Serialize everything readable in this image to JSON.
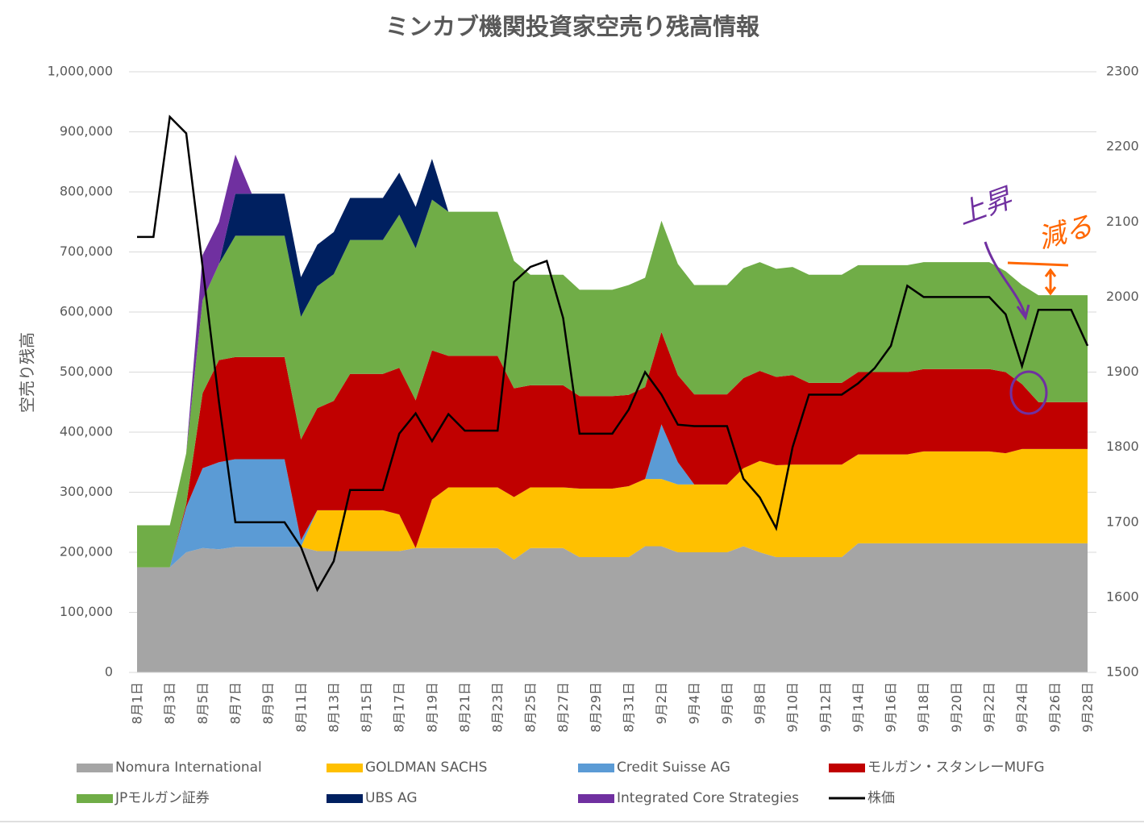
{
  "chart_data": {
    "type": "stacked-area",
    "title": "ミンカブ機関投資家空売り残高情報",
    "y_label": "空売り残高",
    "categories": [
      "8月1日",
      null,
      "8月3日",
      null,
      "8月5日",
      null,
      "8月7日",
      null,
      "8月9日",
      null,
      "8月11日",
      null,
      "8月13日",
      null,
      "8月15日",
      null,
      "8月17日",
      null,
      "8月19日",
      null,
      "8月21日",
      null,
      "8月23日",
      null,
      "8月25日",
      null,
      "8月27日",
      null,
      "8月29日",
      null,
      "8月31日",
      null,
      "9月2日",
      null,
      "9月4日",
      null,
      "9月6日",
      null,
      "9月8日",
      null,
      "9月10日",
      null,
      "9月12日",
      null,
      "9月14日",
      null,
      "9月16日",
      null,
      "9月18日",
      null,
      "9月20日",
      null,
      "9月22日",
      null,
      "9月24日",
      null,
      "9月26日",
      null,
      "9月28日"
    ],
    "ylim": [
      0,
      1000000
    ],
    "yticks": [
      0,
      {
        "value": 100000,
        "label": "100,000"
      },
      {
        "value": 200000,
        "label": "200,000"
      },
      {
        "value": 300000,
        "label": "300,000"
      },
      {
        "value": 400000,
        "label": "400,000"
      },
      {
        "value": 500000,
        "label": "500,000"
      },
      {
        "value": 600000,
        "label": "600,000"
      },
      {
        "value": 700000,
        "label": "700,000"
      },
      {
        "value": 800000,
        "label": "800,000"
      },
      {
        "value": 900000,
        "label": "900,000"
      },
      {
        "value": 1000000,
        "label": "1,000,000"
      }
    ],
    "y2lim": [
      1500,
      2300
    ],
    "y2ticks": [
      1500,
      1600,
      1700,
      1800,
      1900,
      2000,
      2100,
      2200,
      2300
    ],
    "grid": true,
    "legend": "bottom",
    "series": [
      {
        "name": "Nomura International",
        "color": "#a5a5a5",
        "values": [
          175000,
          175000,
          175000,
          200000,
          207000,
          205000,
          209000,
          209000,
          209000,
          209000,
          209000,
          202000,
          202000,
          202000,
          202000,
          202000,
          202000,
          207000,
          207000,
          207000,
          207000,
          207000,
          207000,
          188000,
          207000,
          207000,
          207000,
          192000,
          192000,
          192000,
          192000,
          210000,
          210000,
          200000,
          200000,
          200000,
          200000,
          210000,
          200000,
          192000,
          192000,
          192000,
          192000,
          192000,
          215000,
          215000,
          215000,
          215000,
          215000,
          215000,
          215000,
          215000,
          215000,
          215000,
          215000,
          215000,
          215000,
          215000,
          215000
        ]
      },
      {
        "name": "GOLDMAN SACHS",
        "color": "#ffc000",
        "values": [
          0,
          0,
          0,
          0,
          0,
          0,
          0,
          0,
          0,
          0,
          0,
          68000,
          68000,
          68000,
          68000,
          68000,
          61000,
          0,
          81000,
          101000,
          101000,
          101000,
          101000,
          104000,
          101000,
          101000,
          101000,
          114000,
          114000,
          114000,
          118000,
          112000,
          112000,
          113000,
          113000,
          113000,
          113000,
          130000,
          152000,
          153000,
          154000,
          154000,
          154000,
          154000,
          148000,
          148000,
          148000,
          148000,
          153000,
          153000,
          153000,
          153000,
          153000,
          150000,
          157000,
          157000,
          157000,
          157000,
          157000
        ]
      },
      {
        "name": "Credit Suisse AG",
        "color": "#5b9bd5",
        "values": [
          0,
          0,
          0,
          75000,
          133000,
          145000,
          146000,
          146000,
          146000,
          146000,
          11000,
          0,
          0,
          0,
          0,
          0,
          0,
          0,
          0,
          0,
          0,
          0,
          0,
          0,
          0,
          0,
          0,
          0,
          0,
          0,
          0,
          0,
          91000,
          37000,
          0,
          0,
          0,
          0,
          0,
          0,
          0,
          0,
          0,
          0,
          0,
          0,
          0,
          0,
          0,
          0,
          0,
          0,
          0,
          0,
          0,
          0,
          0,
          0,
          0
        ]
      },
      {
        "name": "モルガン・スタンレーMUFG",
        "color": "#c00000",
        "values": [
          0,
          0,
          0,
          5000,
          125000,
          170000,
          170000,
          170000,
          170000,
          170000,
          168000,
          170000,
          182000,
          227000,
          227000,
          227000,
          244000,
          246000,
          248000,
          219000,
          219000,
          219000,
          219000,
          181000,
          170000,
          170000,
          170000,
          154000,
          154000,
          154000,
          152000,
          153000,
          154000,
          145000,
          150000,
          150000,
          150000,
          150000,
          150000,
          147000,
          149000,
          136000,
          136000,
          136000,
          137000,
          137000,
          137000,
          137000,
          137000,
          137000,
          137000,
          137000,
          137000,
          135000,
          108000,
          78000,
          78000,
          78000,
          78000
        ]
      },
      {
        "name": "JPモルガン証券",
        "color": "#70ad47",
        "values": [
          70000,
          70000,
          70000,
          85000,
          155000,
          160000,
          202000,
          202000,
          202000,
          202000,
          204000,
          203000,
          211000,
          223000,
          223000,
          223000,
          255000,
          253000,
          251000,
          240000,
          240000,
          240000,
          240000,
          212000,
          184000,
          184000,
          184000,
          177000,
          177000,
          177000,
          183000,
          182000,
          185000,
          185000,
          182000,
          182000,
          182000,
          183000,
          181000,
          180000,
          180000,
          180000,
          180000,
          180000,
          178000,
          178000,
          178000,
          178000,
          178000,
          178000,
          178000,
          178000,
          178000,
          168000,
          165000,
          178000,
          178000,
          178000,
          178000
        ]
      },
      {
        "name": "UBS AG",
        "color": "#002060",
        "values": [
          0,
          0,
          0,
          0,
          0,
          0,
          70000,
          70000,
          70000,
          70000,
          66000,
          69000,
          70000,
          70000,
          70000,
          70000,
          70000,
          69000,
          68000,
          0,
          0,
          0,
          0,
          0,
          0,
          0,
          0,
          0,
          0,
          0,
          0,
          0,
          0,
          0,
          0,
          0,
          0,
          0,
          0,
          0,
          0,
          0,
          0,
          0,
          0,
          0,
          0,
          0,
          0,
          0,
          0,
          0,
          0,
          0,
          0,
          0,
          0,
          0,
          0
        ]
      },
      {
        "name": "Integrated Core Strategies",
        "color": "#7030a0",
        "values": [
          0,
          0,
          0,
          0,
          75000,
          70000,
          65000,
          0,
          0,
          0,
          0,
          0,
          0,
          0,
          0,
          0,
          0,
          0,
          0,
          0,
          0,
          0,
          0,
          0,
          0,
          0,
          0,
          0,
          0,
          0,
          0,
          0,
          0,
          0,
          0,
          0,
          0,
          0,
          0,
          0,
          0,
          0,
          0,
          0,
          0,
          0,
          0,
          0,
          0,
          0,
          0,
          0,
          0,
          0,
          0,
          0,
          0,
          0,
          0
        ]
      },
      {
        "name": "株価",
        "color": "#000000",
        "type": "line",
        "axis": "y2",
        "values": [
          2080,
          2080,
          2240,
          2218,
          2040,
          1860,
          1700,
          1700,
          1700,
          1700,
          1667,
          1610,
          1648,
          1743,
          1743,
          1743,
          1818,
          1845,
          1808,
          1844,
          1822,
          1822,
          1822,
          2020,
          2040,
          2048,
          1972,
          1818,
          1818,
          1818,
          1850,
          1900,
          1870,
          1830,
          1828,
          1828,
          1828,
          1758,
          1733,
          1692,
          1800,
          1870,
          1870,
          1870,
          1885,
          1905,
          1935,
          2015,
          2000,
          2000,
          2000,
          2000,
          2000,
          1977,
          1908,
          1983,
          1983,
          1983,
          1935
        ]
      }
    ],
    "annotations": [
      {
        "text": "上昇",
        "color": "#7030a0"
      },
      {
        "text": "減る",
        "color": "#ff6600"
      }
    ]
  }
}
